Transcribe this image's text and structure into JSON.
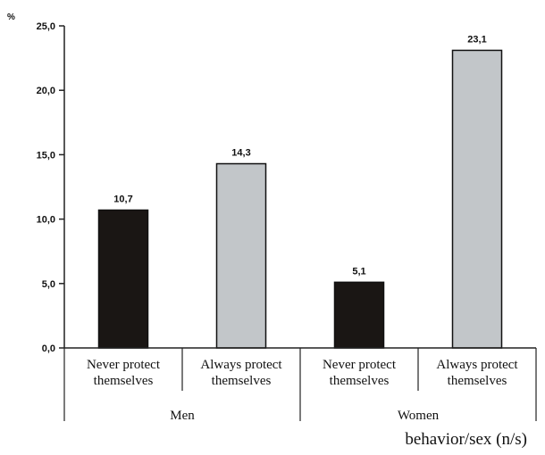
{
  "chart_data": {
    "type": "bar",
    "ylabel": "%",
    "xlabel": "behavior/sex (n/s)",
    "ylim": [
      0,
      25
    ],
    "yticks": [
      "0,0",
      "5,0",
      "10,0",
      "15,0",
      "20,0",
      "25,0"
    ],
    "groups": [
      {
        "name": "Men",
        "categories": [
          "Never protect themselves",
          "Always protect themselves"
        ]
      },
      {
        "name": "Women",
        "categories": [
          "Never protect themselves",
          "Always protect themselves"
        ]
      }
    ],
    "category_lines": [
      [
        "Never protect",
        "themselves"
      ],
      [
        "Always protect",
        "themselves"
      ],
      [
        "Never protect",
        "themselves"
      ],
      [
        "Always protect",
        "themselves"
      ]
    ],
    "values": [
      10.7,
      14.3,
      5.1,
      23.1
    ],
    "value_labels": [
      "10,7",
      "14,3",
      "5,1",
      "23,1"
    ],
    "bar_colors": [
      "#1a1614",
      "#c2c6c9",
      "#1a1614",
      "#c2c6c9"
    ],
    "grid": false,
    "legend": "none"
  }
}
